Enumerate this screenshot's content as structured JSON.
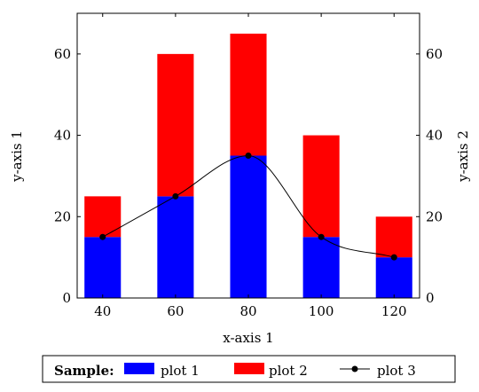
{
  "chart_data": {
    "type": "bar",
    "stacked": true,
    "x": [
      40,
      60,
      80,
      100,
      120
    ],
    "xlabel": "x-axis 1",
    "ylabel": "y-axis 1",
    "ylabel_right": "y-axis 2",
    "ylim": [
      0,
      70
    ],
    "ylim_right": [
      0,
      70
    ],
    "xlim": [
      33,
      127
    ],
    "x_ticks": [
      40,
      60,
      80,
      100,
      120
    ],
    "y_ticks": [
      0,
      20,
      40,
      60
    ],
    "y_ticks_right": [
      0,
      20,
      40,
      60
    ],
    "grid": false,
    "legend_placement": "bottom",
    "legend_title": "Sample:",
    "series": [
      {
        "name": "plot 1",
        "type": "bar",
        "axis": "left",
        "color": "#0000ff",
        "values": [
          15,
          25,
          35,
          15,
          10
        ]
      },
      {
        "name": "plot 2",
        "type": "bar",
        "axis": "left",
        "color": "#ff0000",
        "values": [
          10,
          35,
          30,
          25,
          10
        ]
      },
      {
        "name": "plot 3",
        "type": "line",
        "axis": "right",
        "color": "#000000",
        "smooth": true,
        "marker": "circle",
        "values": [
          15,
          25,
          35,
          15,
          10
        ]
      }
    ]
  }
}
